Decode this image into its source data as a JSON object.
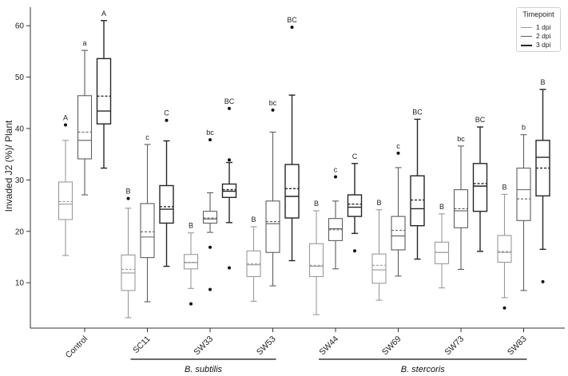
{
  "chart_data": {
    "type": "box",
    "title": "",
    "ylabel": "Invaded J2 (%)/ Plant",
    "xlabel": "",
    "ylim": [
      0,
      65
    ],
    "yticks": [
      10,
      20,
      30,
      40,
      50,
      60
    ],
    "legend_title": "Timepoint",
    "legend_position": "top-right",
    "grid": false,
    "series": [
      {
        "name": "1 dpi",
        "color": "#9a9a9a"
      },
      {
        "name": "2 dpi",
        "color": "#5e5e5e"
      },
      {
        "name": "3 dpi",
        "color": "#262626"
      }
    ],
    "categories": [
      "Control",
      "SC11",
      "SW33",
      "SW53",
      "SW44",
      "SW69",
      "SW73",
      "SW83"
    ],
    "groups": [
      {
        "label": "B. subtilis",
        "from": "SC11",
        "to": "SW53"
      },
      {
        "label": "B. stercoris",
        "from": "SW44",
        "to": "SW83"
      }
    ],
    "boxes": [
      [
        {
          "min": 15.3,
          "q1": 22.3,
          "median": 25.3,
          "mean": 25.8,
          "q3": 29.6,
          "max": 37.7,
          "outliers": [
            40.7
          ],
          "letter": "A"
        },
        {
          "min": 27.1,
          "q1": 34.1,
          "median": 37.7,
          "mean": 39.3,
          "q3": 46.4,
          "max": 55.2,
          "outliers": [],
          "letter": "a"
        },
        {
          "min": 32.3,
          "q1": 40.9,
          "median": 43.4,
          "mean": 46.3,
          "q3": 53.6,
          "max": 61.0,
          "outliers": [],
          "letter": "A"
        }
      ],
      [
        {
          "min": 3.2,
          "q1": 8.5,
          "median": 11.9,
          "mean": 12.6,
          "q3": 15.4,
          "max": 24.5,
          "outliers": [
            26.4
          ],
          "letter": "B"
        },
        {
          "min": 6.3,
          "q1": 14.9,
          "median": 18.9,
          "mean": 19.9,
          "q3": 25.4,
          "max": 36.9,
          "outliers": [],
          "letter": "c"
        },
        {
          "min": 13.2,
          "q1": 21.6,
          "median": 24.3,
          "mean": 24.8,
          "q3": 28.9,
          "max": 37.6,
          "outliers": [
            41.6
          ],
          "letter": "C"
        }
      ],
      [
        {
          "min": 8.9,
          "q1": 12.7,
          "median": 13.9,
          "mean": 14.0,
          "q3": 15.5,
          "max": 19.7,
          "outliers": [
            5.9
          ],
          "letter": "B"
        },
        {
          "min": 19.8,
          "q1": 21.6,
          "median": 22.4,
          "mean": 22.6,
          "q3": 23.9,
          "max": 27.5,
          "outliers": [
            37.8,
            16.9,
            8.7
          ],
          "letter": "bc"
        },
        {
          "min": 21.7,
          "q1": 26.6,
          "median": 27.8,
          "mean": 28.1,
          "q3": 29.2,
          "max": 33.4,
          "outliers": [
            43.9,
            33.9,
            12.9
          ],
          "letter": "BC"
        }
      ],
      [
        {
          "min": 6.4,
          "q1": 11.2,
          "median": 13.5,
          "mean": 13.7,
          "q3": 16.2,
          "max": 20.9,
          "outliers": [],
          "letter": "B"
        },
        {
          "min": 9.4,
          "q1": 15.9,
          "median": 21.5,
          "mean": 21.9,
          "q3": 25.9,
          "max": 39.3,
          "outliers": [
            43.6
          ],
          "letter": "bc"
        },
        {
          "min": 14.3,
          "q1": 22.6,
          "median": 26.8,
          "mean": 28.3,
          "q3": 33.0,
          "max": 46.5,
          "outliers": [
            59.7
          ],
          "letter": "BC"
        }
      ],
      [
        {
          "min": 3.8,
          "q1": 11.2,
          "median": 13.2,
          "mean": 13.4,
          "q3": 17.6,
          "max": 24.0,
          "outliers": [],
          "letter": "B"
        },
        {
          "min": 12.7,
          "q1": 18.2,
          "median": 20.5,
          "mean": 20.3,
          "q3": 22.5,
          "max": 25.9,
          "outliers": [
            30.6
          ],
          "letter": "c"
        },
        {
          "min": 19.6,
          "q1": 22.9,
          "median": 24.7,
          "mean": 25.3,
          "q3": 27.1,
          "max": 33.2,
          "outliers": [
            16.2
          ],
          "letter": "C"
        }
      ],
      [
        {
          "min": 6.6,
          "q1": 9.9,
          "median": 12.5,
          "mean": 13.4,
          "q3": 15.6,
          "max": 24.2,
          "outliers": [],
          "letter": "B"
        },
        {
          "min": 11.3,
          "q1": 16.4,
          "median": 19.1,
          "mean": 20.2,
          "q3": 22.9,
          "max": 32.4,
          "outliers": [
            35.2
          ],
          "letter": "c"
        },
        {
          "min": 14.6,
          "q1": 21.1,
          "median": 24.4,
          "mean": 26.1,
          "q3": 30.8,
          "max": 41.8,
          "outliers": [],
          "letter": "BC"
        }
      ],
      [
        {
          "min": 9.0,
          "q1": 13.7,
          "median": 15.9,
          "mean": 15.9,
          "q3": 17.9,
          "max": 23.4,
          "outliers": [],
          "letter": "B"
        },
        {
          "min": 12.6,
          "q1": 20.7,
          "median": 24.0,
          "mean": 24.4,
          "q3": 28.1,
          "max": 36.6,
          "outliers": [],
          "letter": "bc"
        },
        {
          "min": 16.1,
          "q1": 23.9,
          "median": 28.8,
          "mean": 29.3,
          "q3": 33.2,
          "max": 40.3,
          "outliers": [],
          "letter": "BC"
        }
      ],
      [
        {
          "min": 7.1,
          "q1": 14.0,
          "median": 15.9,
          "mean": 16.1,
          "q3": 19.2,
          "max": 27.2,
          "outliers": [
            5.1
          ],
          "letter": "B"
        },
        {
          "min": 8.5,
          "q1": 22.1,
          "median": 28.1,
          "mean": 26.3,
          "q3": 32.3,
          "max": 38.8,
          "outliers": [],
          "letter": "b"
        },
        {
          "min": 16.5,
          "q1": 26.9,
          "median": 34.4,
          "mean": 32.3,
          "q3": 37.7,
          "max": 47.6,
          "outliers": [
            10.2
          ],
          "letter": "B"
        }
      ]
    ]
  }
}
